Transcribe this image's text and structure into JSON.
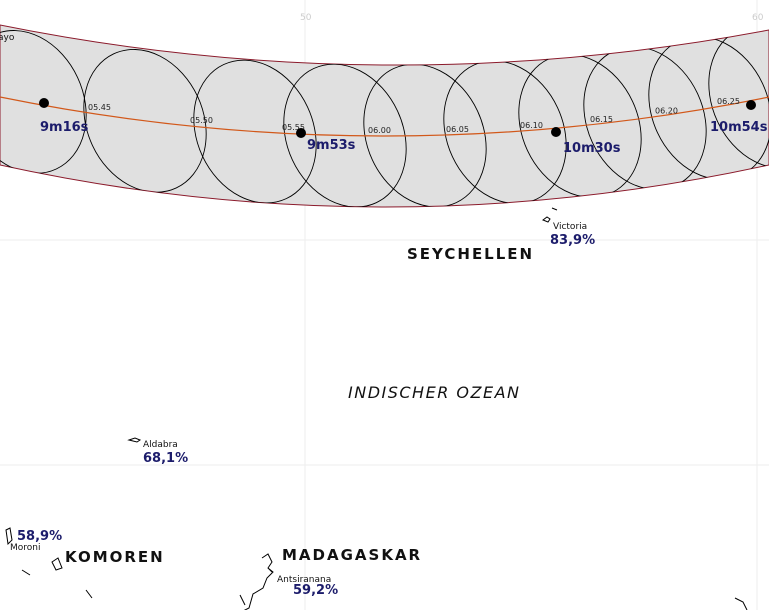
{
  "grid_labels": [
    "50",
    "60"
  ],
  "partial_label": "ayo",
  "center_line_times": [
    "05.45",
    "05.50",
    "05.55",
    "06.00",
    "06.05",
    "06.10",
    "06.15",
    "06.20",
    "06.25"
  ],
  "durations": [
    "9m16s",
    "9m53s",
    "10m30s",
    "10m54s"
  ],
  "countries": [
    "SEYCHELLEN",
    "KOMOREN",
    "MADAGASKAR"
  ],
  "ocean": "INDISCHER OZEAN",
  "places": [
    {
      "name": "Victoria",
      "coverage": "83,9%"
    },
    {
      "name": "Aldabra",
      "coverage": "68,1%"
    },
    {
      "name": "Moroni",
      "coverage": "58,9%"
    },
    {
      "name": "Antsiranana",
      "coverage": "59,2%"
    }
  ]
}
